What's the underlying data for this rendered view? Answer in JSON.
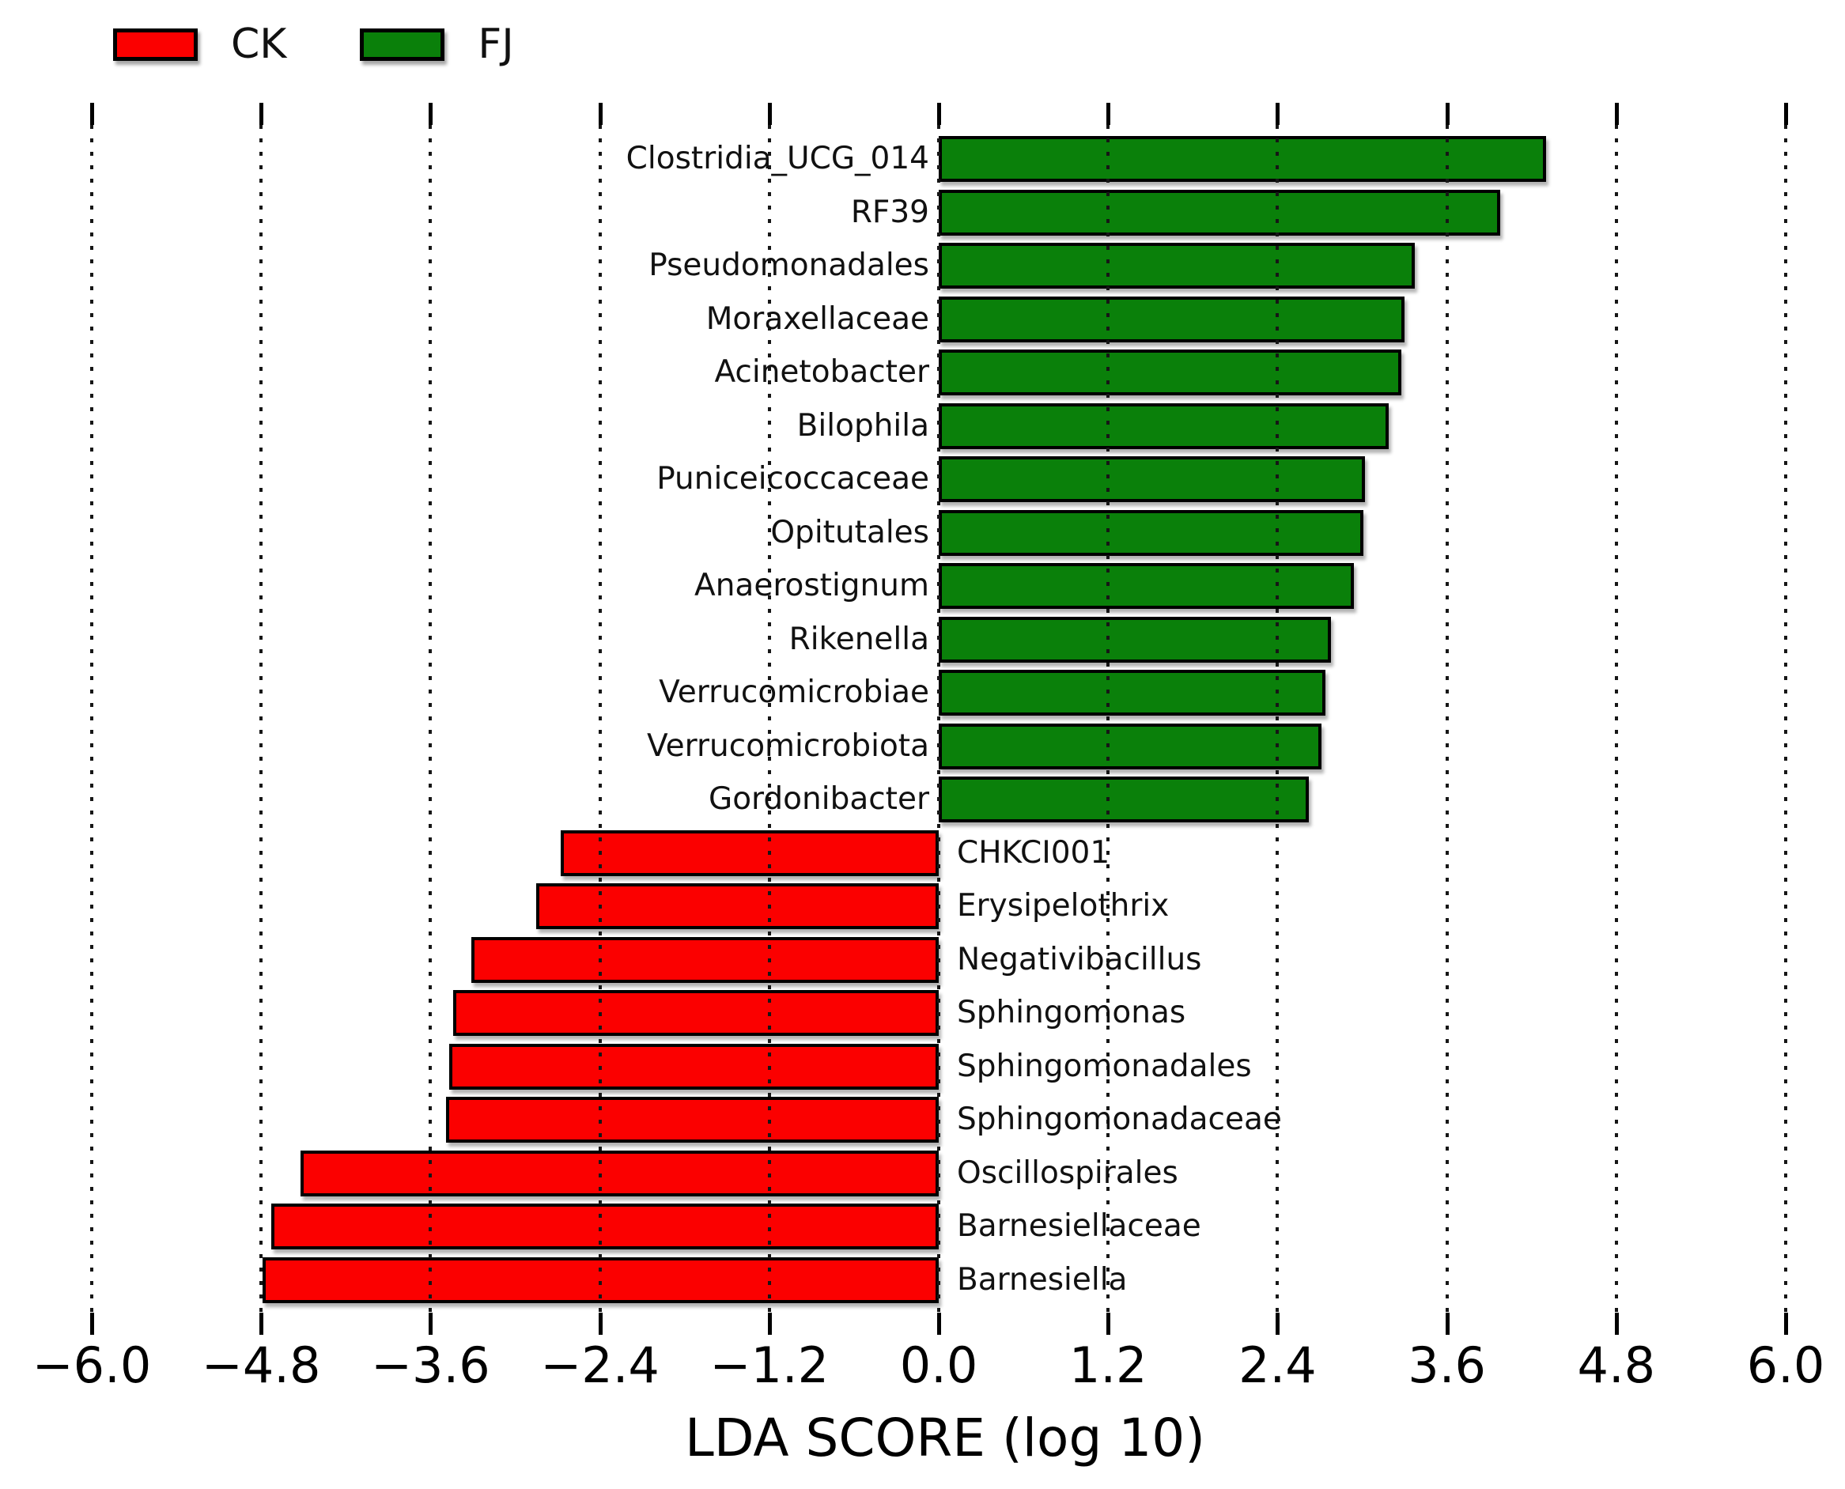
{
  "legend": {
    "items": [
      {
        "label": "CK",
        "color": "#fb0000"
      },
      {
        "label": "FJ",
        "color": "#0a800a"
      }
    ]
  },
  "chart_data": {
    "type": "bar",
    "orientation": "horizontal",
    "title": "",
    "xlabel": "LDA SCORE (log 10)",
    "ylabel": "",
    "xlim": [
      -6.0,
      6.0
    ],
    "grid": "dotted-vertical",
    "legend_position": "top-left",
    "xticks": [
      -6.0,
      -4.8,
      -3.6,
      -2.4,
      -1.2,
      0.0,
      1.2,
      2.4,
      3.6,
      4.8,
      6.0
    ],
    "xtick_labels": [
      "−6.0",
      "−4.8",
      "−3.6",
      "−2.4",
      "−1.2",
      "0.0",
      "1.2",
      "2.4",
      "3.6",
      "4.8",
      "6.0"
    ],
    "groups": [
      {
        "name": "CK",
        "color": "#fb0000",
        "side": "negative"
      },
      {
        "name": "FJ",
        "color": "#0a800a",
        "side": "positive"
      }
    ],
    "bars": [
      {
        "label": "Clostridia_UCG_014",
        "group": "FJ",
        "value": 4.3
      },
      {
        "label": "RF39",
        "group": "FJ",
        "value": 3.98
      },
      {
        "label": "Pseudomonadales",
        "group": "FJ",
        "value": 3.37
      },
      {
        "label": "Moraxellaceae",
        "group": "FJ",
        "value": 3.3
      },
      {
        "label": "Acinetobacter",
        "group": "FJ",
        "value": 3.28
      },
      {
        "label": "Bilophila",
        "group": "FJ",
        "value": 3.19
      },
      {
        "label": "Puniceicoccaceae",
        "group": "FJ",
        "value": 3.02
      },
      {
        "label": "Opitutales",
        "group": "FJ",
        "value": 3.01
      },
      {
        "label": "Anaerostignum",
        "group": "FJ",
        "value": 2.94
      },
      {
        "label": "Rikenella",
        "group": "FJ",
        "value": 2.78
      },
      {
        "label": "Verrucomicrobiae",
        "group": "FJ",
        "value": 2.74
      },
      {
        "label": "Verrucomicrobiota",
        "group": "FJ",
        "value": 2.71
      },
      {
        "label": "Gordonibacter",
        "group": "FJ",
        "value": 2.62
      },
      {
        "label": "CHKCI001",
        "group": "CK",
        "value": -2.68
      },
      {
        "label": "Erysipelothrix",
        "group": "CK",
        "value": -2.85
      },
      {
        "label": "Negativibacillus",
        "group": "CK",
        "value": -3.31
      },
      {
        "label": "Sphingomonas",
        "group": "CK",
        "value": -3.44
      },
      {
        "label": "Sphingomonadales",
        "group": "CK",
        "value": -3.47
      },
      {
        "label": "Sphingomonadaceae",
        "group": "CK",
        "value": -3.49
      },
      {
        "label": "Oscillospirales",
        "group": "CK",
        "value": -4.52
      },
      {
        "label": "Barnesiellaceae",
        "group": "CK",
        "value": -4.73
      },
      {
        "label": "Barnesiella",
        "group": "CK",
        "value": -4.79
      }
    ]
  }
}
